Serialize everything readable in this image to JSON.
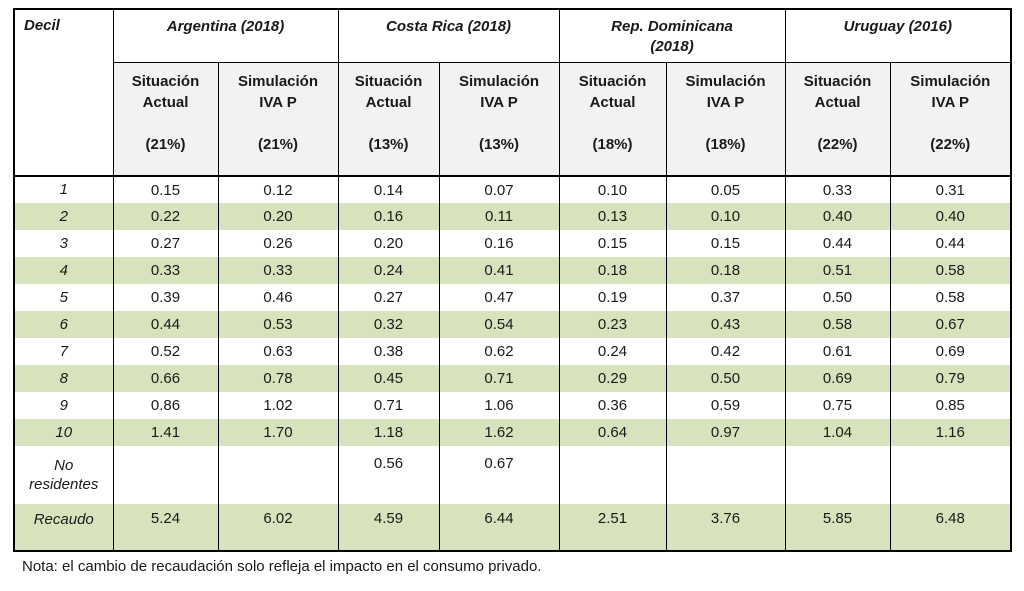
{
  "note": "Nota: el cambio de recaudación solo refleja el impacto en el consumo privado.",
  "colors": {
    "row_shade_green": "#d7e3bc",
    "header_gray": "#f2f2f2",
    "border_black": "#000000"
  },
  "chart_data": {
    "type": "table",
    "corner_label": "Decil",
    "groups": [
      {
        "label_lines": [
          "Argentina (2018)"
        ],
        "rate": "(21%)"
      },
      {
        "label_lines": [
          "Costa Rica (2018)"
        ],
        "rate": "(13%)"
      },
      {
        "label_lines": [
          "Rep. Dominicana",
          "(2018)"
        ],
        "rate": "(18%)"
      },
      {
        "label_lines": [
          "Uruguay (2016)"
        ],
        "rate": "(22%)"
      }
    ],
    "sub_columns": [
      {
        "lines": [
          "Situación",
          "Actual"
        ]
      },
      {
        "lines": [
          "Simulación",
          "IVA P"
        ]
      }
    ],
    "rows": [
      {
        "kind": "decile",
        "shaded": false,
        "label_lines": [
          "1"
        ],
        "values": [
          "0.15",
          "0.12",
          "0.14",
          "0.07",
          "0.10",
          "0.05",
          "0.33",
          "0.31"
        ]
      },
      {
        "kind": "decile",
        "shaded": true,
        "label_lines": [
          "2"
        ],
        "values": [
          "0.22",
          "0.20",
          "0.16",
          "0.11",
          "0.13",
          "0.10",
          "0.40",
          "0.40"
        ]
      },
      {
        "kind": "decile",
        "shaded": false,
        "label_lines": [
          "3"
        ],
        "values": [
          "0.27",
          "0.26",
          "0.20",
          "0.16",
          "0.15",
          "0.15",
          "0.44",
          "0.44"
        ]
      },
      {
        "kind": "decile",
        "shaded": true,
        "label_lines": [
          "4"
        ],
        "values": [
          "0.33",
          "0.33",
          "0.24",
          "0.41",
          "0.18",
          "0.18",
          "0.51",
          "0.58"
        ]
      },
      {
        "kind": "decile",
        "shaded": false,
        "label_lines": [
          "5"
        ],
        "values": [
          "0.39",
          "0.46",
          "0.27",
          "0.47",
          "0.19",
          "0.37",
          "0.50",
          "0.58"
        ]
      },
      {
        "kind": "decile",
        "shaded": true,
        "label_lines": [
          "6"
        ],
        "values": [
          "0.44",
          "0.53",
          "0.32",
          "0.54",
          "0.23",
          "0.43",
          "0.58",
          "0.67"
        ]
      },
      {
        "kind": "decile",
        "shaded": false,
        "label_lines": [
          "7"
        ],
        "values": [
          "0.52",
          "0.63",
          "0.38",
          "0.62",
          "0.24",
          "0.42",
          "0.61",
          "0.69"
        ]
      },
      {
        "kind": "decile",
        "shaded": true,
        "label_lines": [
          "8"
        ],
        "values": [
          "0.66",
          "0.78",
          "0.45",
          "0.71",
          "0.29",
          "0.50",
          "0.69",
          "0.79"
        ]
      },
      {
        "kind": "decile",
        "shaded": false,
        "label_lines": [
          "9"
        ],
        "values": [
          "0.86",
          "1.02",
          "0.71",
          "1.06",
          "0.36",
          "0.59",
          "0.75",
          "0.85"
        ]
      },
      {
        "kind": "decile",
        "shaded": true,
        "label_lines": [
          "10"
        ],
        "values": [
          "1.41",
          "1.70",
          "1.18",
          "1.62",
          "0.64",
          "0.97",
          "1.04",
          "1.16"
        ]
      },
      {
        "kind": "nores",
        "shaded": false,
        "label_lines": [
          "No",
          "residentes"
        ],
        "values": [
          "",
          "",
          "0.56",
          "0.67",
          "",
          "",
          "",
          ""
        ]
      },
      {
        "kind": "recaudo",
        "shaded": true,
        "label_lines": [
          "Recaudo"
        ],
        "values": [
          "5.24",
          "6.02",
          "4.59",
          "6.44",
          "2.51",
          "3.76",
          "5.85",
          "6.48"
        ]
      }
    ]
  }
}
